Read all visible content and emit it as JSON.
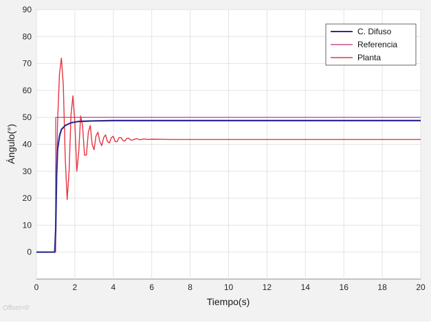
{
  "chart_data": {
    "type": "line",
    "title": "",
    "xlabel": "Tiempo(s)",
    "ylabel": "Ángulo(°)",
    "xlim": [
      0,
      20
    ],
    "ylim": [
      -10,
      90
    ],
    "xticks": [
      "0",
      "2",
      "4",
      "6",
      "8",
      "10",
      "12",
      "14",
      "16",
      "18",
      "20"
    ],
    "yticks": [
      "0",
      "10",
      "20",
      "30",
      "40",
      "50",
      "60",
      "70",
      "80",
      "90"
    ],
    "grid": true,
    "legend_position": "top-right",
    "series": [
      {
        "name": "C. Difuso",
        "color": "#2b2b8f",
        "x": [
          0,
          0.95,
          1.0,
          1.05,
          1.1,
          1.2,
          1.3,
          1.5,
          1.8,
          2.2,
          3.0,
          4.0,
          6.0,
          20.0
        ],
        "y": [
          0,
          0,
          8,
          28,
          38,
          43,
          45.5,
          47,
          48,
          48.5,
          48.7,
          48.8,
          48.8,
          48.8
        ]
      },
      {
        "name": "Referencia",
        "color": "#cc4d8a",
        "x": [
          0,
          1.0,
          1.0,
          20.0
        ],
        "y": [
          0,
          0,
          50,
          50
        ]
      },
      {
        "name": "Planta",
        "color": "#e6333f",
        "x": [
          0,
          0.95,
          1.0,
          1.1,
          1.2,
          1.3,
          1.4,
          1.5,
          1.6,
          1.7,
          1.8,
          1.9,
          2.0,
          2.1,
          2.2,
          2.3,
          2.4,
          2.5,
          2.6,
          2.7,
          2.8,
          2.9,
          3.0,
          3.1,
          3.2,
          3.3,
          3.4,
          3.5,
          3.6,
          3.7,
          3.8,
          3.9,
          4.0,
          4.1,
          4.2,
          4.3,
          4.4,
          4.5,
          4.6,
          4.7,
          4.8,
          4.9,
          5.0,
          5.2,
          5.4,
          5.6,
          5.8,
          6.0,
          6.5,
          7.0,
          8.0,
          20.0
        ],
        "y": [
          0,
          0,
          10,
          48,
          66,
          72,
          62,
          35,
          19.5,
          30,
          51,
          58,
          48,
          30,
          37,
          50.5,
          47,
          36,
          36,
          44.5,
          47,
          40,
          38,
          43,
          44.5,
          41,
          39.5,
          42.5,
          43.5,
          41,
          40.5,
          42.5,
          43,
          41,
          41,
          42.5,
          42.5,
          41.5,
          41.2,
          42.2,
          42.3,
          41.6,
          41.6,
          42.1,
          41.7,
          42.0,
          41.8,
          41.9,
          41.85,
          41.8,
          41.8,
          41.8
        ]
      }
    ]
  },
  "footer": {
    "offset_label": "Offset=0"
  }
}
